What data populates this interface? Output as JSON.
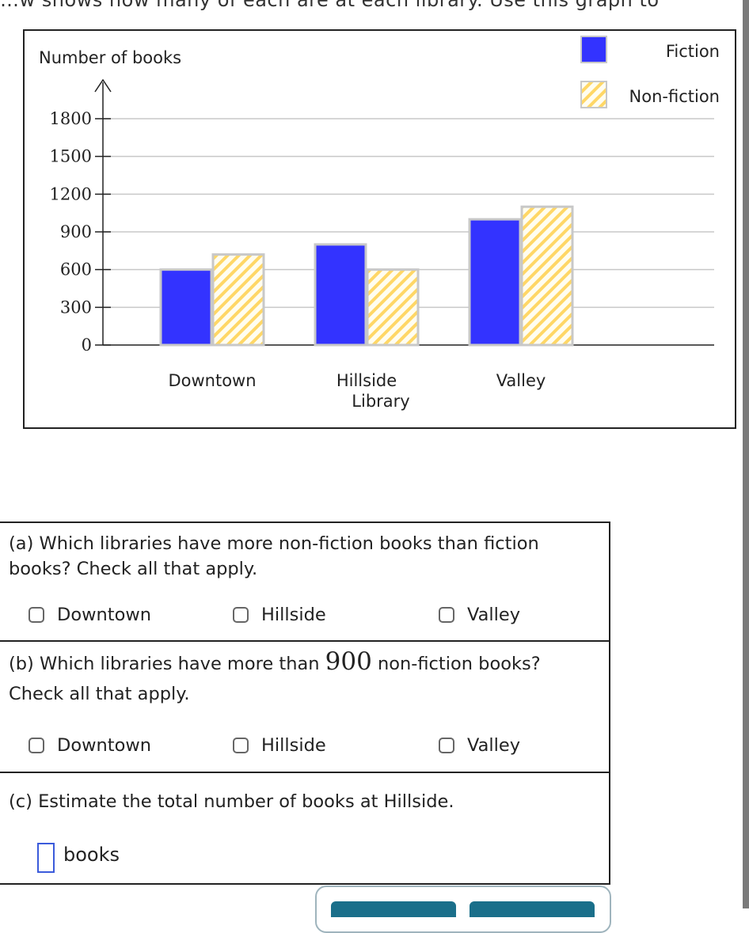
{
  "header": {
    "cut_text": "…w shows how many of each are at each library. Use this graph to"
  },
  "chart_data": {
    "type": "bar",
    "y_axis_title": "Number of books",
    "x_axis_title": "Library",
    "categories": [
      "Downtown",
      "Hillside",
      "Valley"
    ],
    "y_ticks": [
      0,
      300,
      600,
      900,
      1200,
      1500,
      1800
    ],
    "ylim": [
      0,
      1800
    ],
    "grid": true,
    "legend_position": "top-right",
    "series": [
      {
        "name": "Fiction",
        "values": [
          600,
          800,
          1000
        ],
        "color": "#3333ff",
        "pattern": "solid"
      },
      {
        "name": "Non-fiction",
        "values": [
          720,
          600,
          1100
        ],
        "color": "#ffd766",
        "pattern": "hatched"
      }
    ]
  },
  "questions": {
    "a": {
      "text": "(a) Which libraries have more non-fiction books than fiction books? Check all that apply.",
      "options": [
        "Downtown",
        "Hillside",
        "Valley"
      ]
    },
    "b": {
      "text_before": "(b) Which libraries have more than ",
      "number": "900",
      "text_after": " non-fiction books? Check all that apply.",
      "options": [
        "Downtown",
        "Hillside",
        "Valley"
      ]
    },
    "c": {
      "text": "(c) Estimate the total number of books at Hillside.",
      "input_value": "",
      "unit": "books"
    }
  }
}
